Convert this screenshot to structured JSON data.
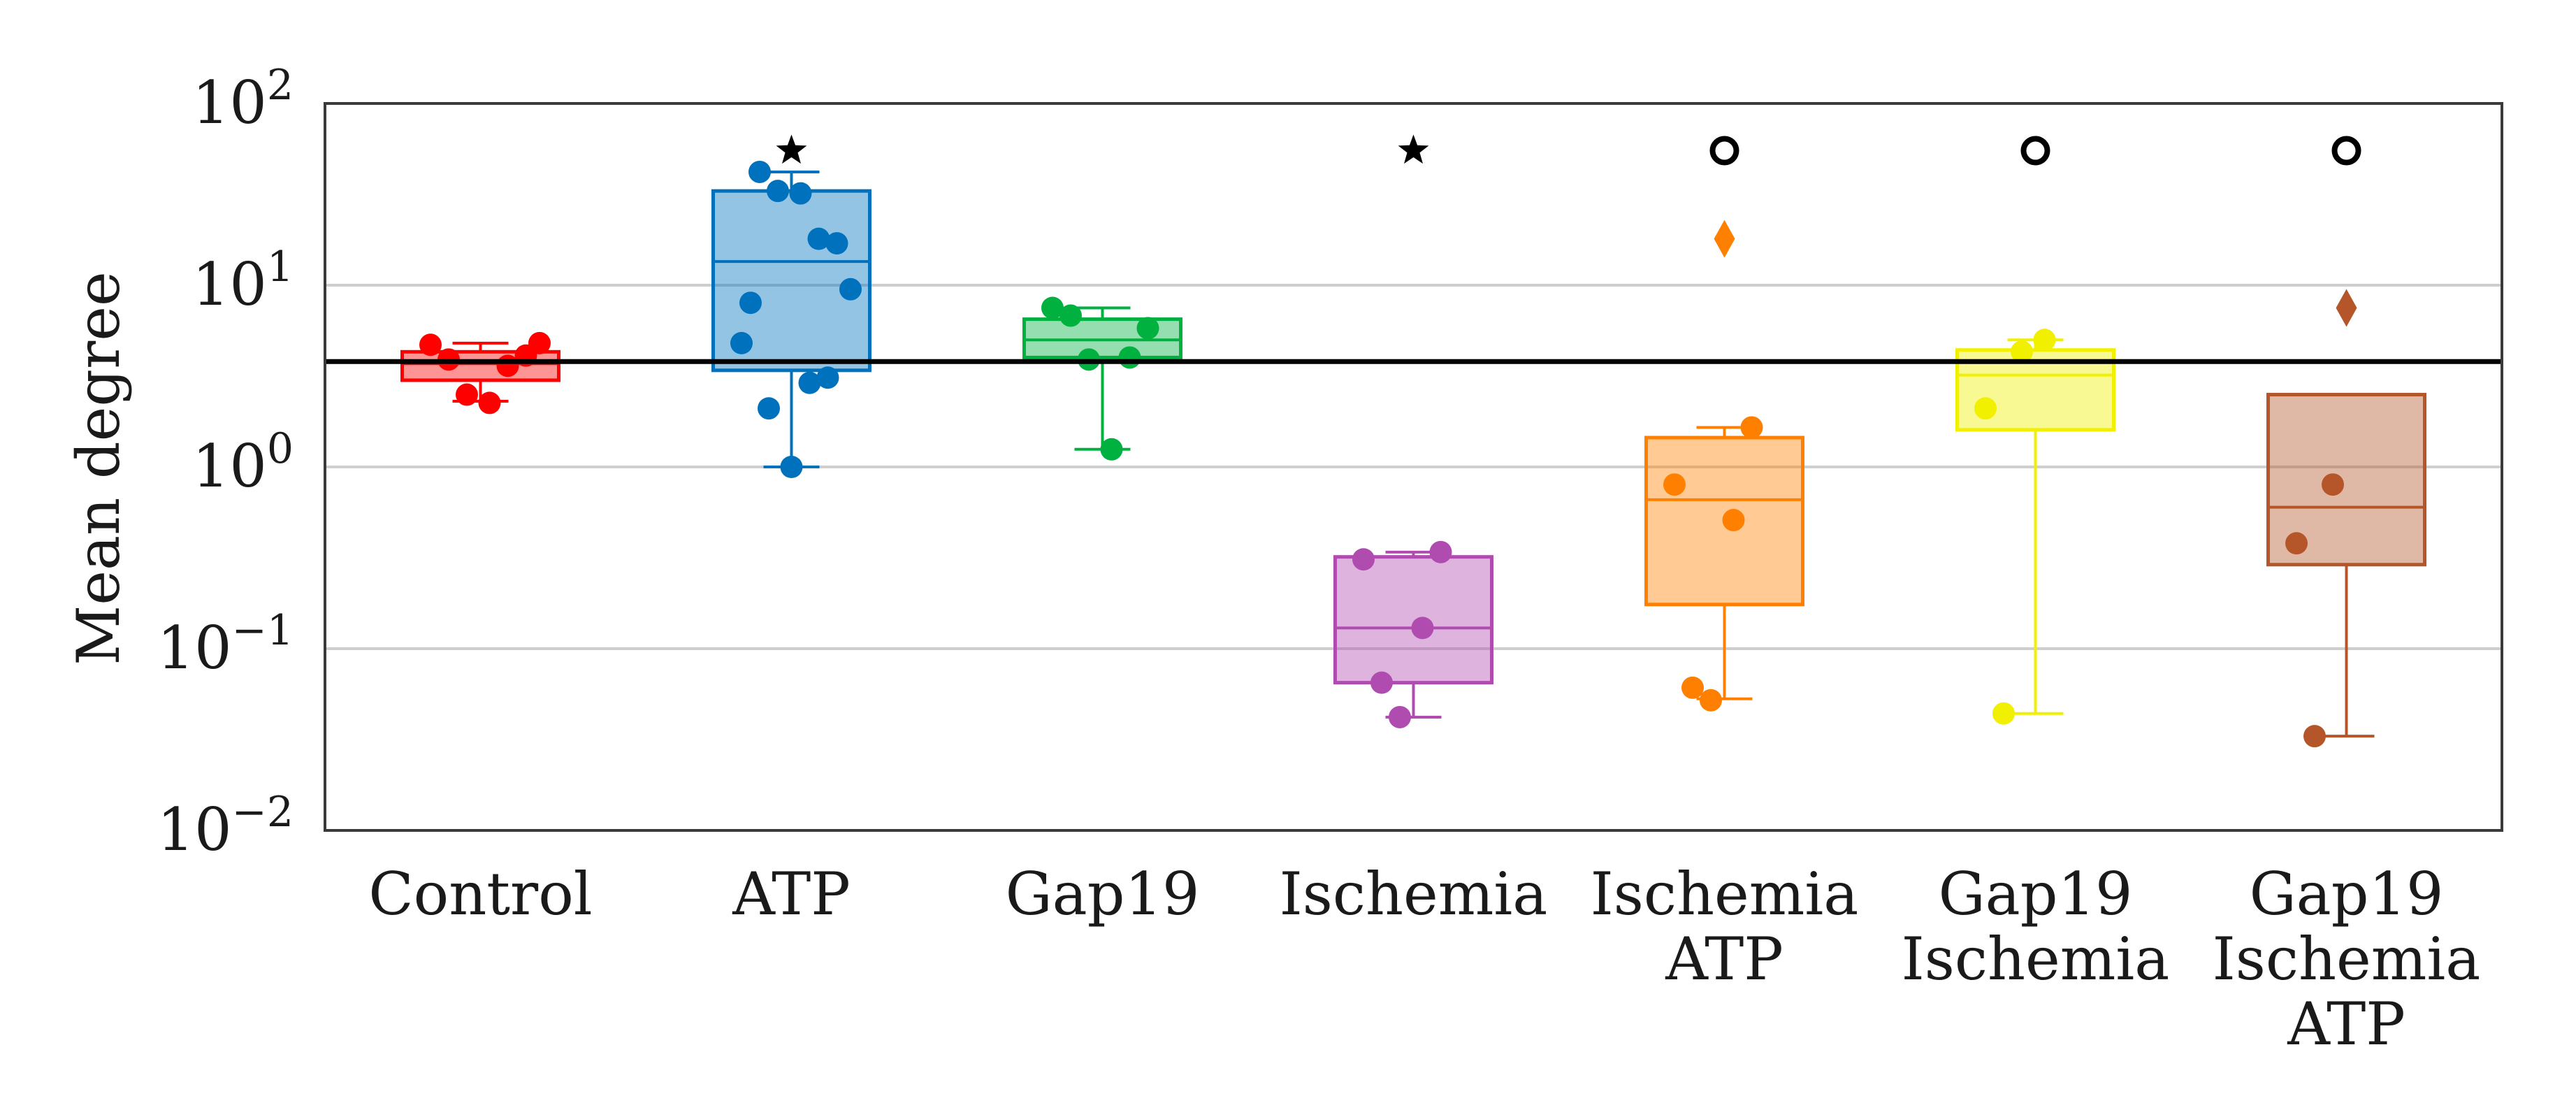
{
  "chart_data": {
    "type": "box",
    "ylabel": "Mean degree",
    "yscale": "log",
    "ylim": [
      0.01,
      100
    ],
    "yticks": [
      {
        "value": 0.01,
        "base": "10",
        "exp": "−2"
      },
      {
        "value": 0.1,
        "base": "10",
        "exp": "−1"
      },
      {
        "value": 1,
        "base": "10",
        "exp": "0"
      },
      {
        "value": 10,
        "base": "10",
        "exp": "1"
      },
      {
        "value": 100,
        "base": "10",
        "exp": "2"
      }
    ],
    "grid_values": [
      0.1,
      1,
      10
    ],
    "reference_line": 3.8,
    "significance_y": 55,
    "groups": [
      {
        "name": "Control",
        "label_lines": [
          "Control"
        ],
        "color": "#ff0000",
        "q1": 3.0,
        "median": 3.7,
        "q3": 4.3,
        "whisker_low": 2.3,
        "whisker_high": 4.8,
        "points": [
          4.7,
          3.9,
          2.5,
          2.25,
          3.6,
          4.1,
          4.8
        ],
        "outliers": [],
        "marker": ""
      },
      {
        "name": "ATP",
        "label_lines": [
          "ATP"
        ],
        "color": "#0072bd",
        "q1": 3.4,
        "median": 13.5,
        "q3": 33,
        "whisker_low": 1.0,
        "whisker_high": 42,
        "points": [
          4.8,
          42,
          33,
          32,
          18,
          17,
          9.5,
          8,
          2.1,
          1.0,
          2.9,
          3.1
        ],
        "outliers": [],
        "marker": "star"
      },
      {
        "name": "Gap19",
        "label_lines": [
          "Gap19"
        ],
        "color": "#00b140",
        "q1": 4.0,
        "median": 5.0,
        "q3": 6.5,
        "whisker_low": 1.25,
        "whisker_high": 7.5,
        "points": [
          7.5,
          6.8,
          3.9,
          1.25,
          4.0,
          5.8
        ],
        "outliers": [],
        "marker": ""
      },
      {
        "name": "Ischemia",
        "label_lines": [
          "Ischemia"
        ],
        "color": "#b04cb0",
        "q1": 0.065,
        "median": 0.13,
        "q3": 0.32,
        "whisker_low": 0.042,
        "whisker_high": 0.34,
        "points": [
          0.31,
          0.065,
          0.042,
          0.13,
          0.34
        ],
        "outliers": [],
        "marker": "star"
      },
      {
        "name": "Ischemia ATP",
        "label_lines": [
          "Ischemia",
          "ATP"
        ],
        "color": "#ff8000",
        "q1": 0.175,
        "median": 0.66,
        "q3": 1.45,
        "whisker_low": 0.053,
        "whisker_high": 1.65,
        "points": [
          0.8,
          0.061,
          0.052,
          0.51,
          1.65
        ],
        "outliers": [
          18
        ],
        "marker": "circle"
      },
      {
        "name": "Gap19 Ischemia",
        "label_lines": [
          "Gap19",
          "Ischemia"
        ],
        "color": "#f0f000",
        "q1": 1.6,
        "median": 3.2,
        "q3": 4.4,
        "whisker_low": 0.044,
        "whisker_high": 5.0,
        "points": [
          2.1,
          0.044,
          4.3,
          5.0
        ],
        "outliers": [],
        "marker": "circle"
      },
      {
        "name": "Gap19 Ischemia ATP",
        "label_lines": [
          "Gap19",
          "Ischemia",
          "ATP"
        ],
        "color": "#b5562a",
        "q1": 0.29,
        "median": 0.6,
        "q3": 2.5,
        "whisker_low": 0.033,
        "whisker_high": 2.5,
        "points": [
          0.38,
          0.033,
          0.8
        ],
        "outliers": [
          7.5
        ],
        "marker": "circle"
      }
    ]
  }
}
